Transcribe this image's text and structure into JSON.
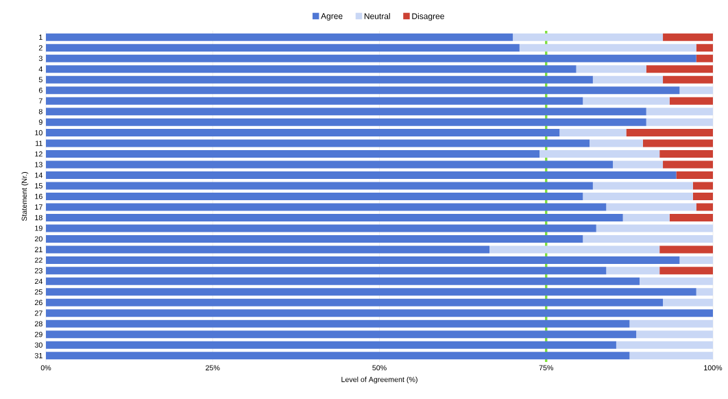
{
  "chart_data": {
    "type": "bar",
    "orientation": "horizontal",
    "stacked": true,
    "xlabel": "Level of Agreement (%)",
    "ylabel": "Statement (Nr.)",
    "categories": [
      "1",
      "2",
      "3",
      "4",
      "5",
      "6",
      "7",
      "8",
      "9",
      "10",
      "11",
      "12",
      "13",
      "14",
      "15",
      "16",
      "17",
      "18",
      "19",
      "20",
      "21",
      "22",
      "23",
      "24",
      "25",
      "26",
      "27",
      "28",
      "29",
      "30",
      "31"
    ],
    "series": [
      {
        "name": "Agree",
        "color": "#4f77d4",
        "values": [
          70,
          71,
          97.5,
          79.5,
          82,
          95,
          80.5,
          90,
          90,
          77,
          81.5,
          74,
          85,
          94.5,
          82,
          80.5,
          84,
          86.5,
          82.5,
          80.5,
          66.5,
          95,
          84,
          89,
          97.5,
          92.5,
          100,
          87.5,
          88.5,
          85.5,
          87.5
        ]
      },
      {
        "name": "Neutral",
        "color": "#c9d7f5",
        "values": [
          22.5,
          26.5,
          0,
          10.5,
          10.5,
          5,
          13,
          10,
          10,
          10,
          8,
          18,
          7.5,
          0,
          15,
          16.5,
          13.5,
          7,
          17.5,
          19.5,
          25.5,
          5,
          8,
          11,
          2.5,
          7.5,
          0,
          12.5,
          11.5,
          14.5,
          12.5
        ]
      },
      {
        "name": "Disagree",
        "color": "#cc4133",
        "values": [
          7.5,
          2.5,
          2.5,
          10,
          7.5,
          0,
          6.5,
          0,
          0,
          13,
          10.5,
          8,
          7.5,
          5.5,
          3,
          3,
          2.5,
          6.5,
          0,
          0,
          8,
          0,
          8,
          0,
          0,
          0,
          0,
          0,
          0,
          0,
          0
        ]
      }
    ],
    "xlim": [
      0,
      100
    ],
    "xticks": [
      {
        "value": 0,
        "label": "0%"
      },
      {
        "value": 25,
        "label": "25%"
      },
      {
        "value": 50,
        "label": "50%"
      },
      {
        "value": 75,
        "label": "75%"
      },
      {
        "value": 100,
        "label": "100%"
      }
    ],
    "ref_lines": [
      {
        "axis": "x",
        "value": 75,
        "color": "#7ee03a"
      }
    ],
    "grid": "x",
    "legend": "top"
  }
}
